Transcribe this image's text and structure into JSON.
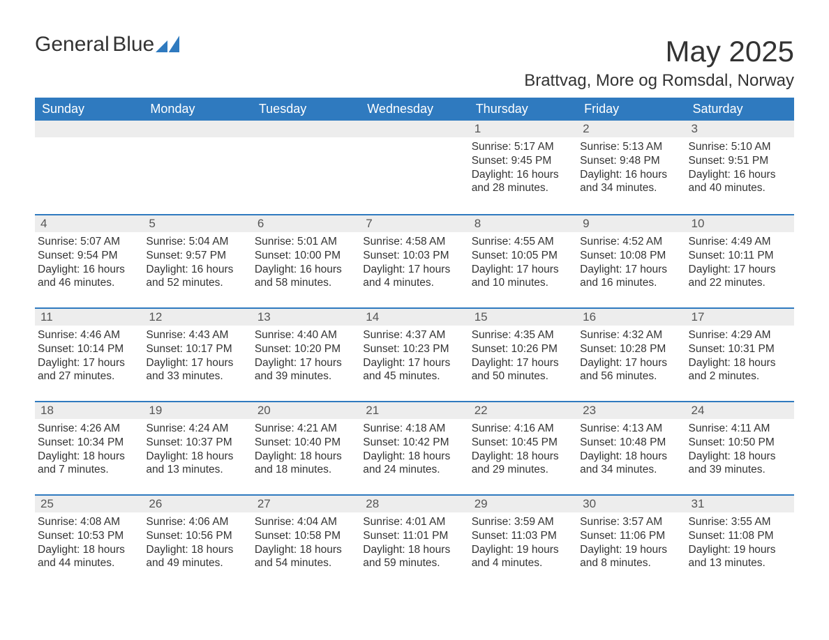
{
  "logo": {
    "text1": "General",
    "text2": "Blue",
    "accent_color": "#2f7abf"
  },
  "title": "May 2025",
  "location": "Brattvag, More og Romsdal, Norway",
  "theme": {
    "header_bg": "#2f7abf",
    "header_text": "#ffffff",
    "dayhead_bg": "#ededed",
    "dayhead_border": "#2f7abf",
    "body_text": "#333333",
    "page_bg": "#ffffff"
  },
  "columns": [
    "Sunday",
    "Monday",
    "Tuesday",
    "Wednesday",
    "Thursday",
    "Friday",
    "Saturday"
  ],
  "weeks": [
    [
      null,
      null,
      null,
      null,
      {
        "n": "1",
        "sr": "5:17 AM",
        "ss": "9:45 PM",
        "dl": "16 hours and 28 minutes."
      },
      {
        "n": "2",
        "sr": "5:13 AM",
        "ss": "9:48 PM",
        "dl": "16 hours and 34 minutes."
      },
      {
        "n": "3",
        "sr": "5:10 AM",
        "ss": "9:51 PM",
        "dl": "16 hours and 40 minutes."
      }
    ],
    [
      {
        "n": "4",
        "sr": "5:07 AM",
        "ss": "9:54 PM",
        "dl": "16 hours and 46 minutes."
      },
      {
        "n": "5",
        "sr": "5:04 AM",
        "ss": "9:57 PM",
        "dl": "16 hours and 52 minutes."
      },
      {
        "n": "6",
        "sr": "5:01 AM",
        "ss": "10:00 PM",
        "dl": "16 hours and 58 minutes."
      },
      {
        "n": "7",
        "sr": "4:58 AM",
        "ss": "10:03 PM",
        "dl": "17 hours and 4 minutes."
      },
      {
        "n": "8",
        "sr": "4:55 AM",
        "ss": "10:05 PM",
        "dl": "17 hours and 10 minutes."
      },
      {
        "n": "9",
        "sr": "4:52 AM",
        "ss": "10:08 PM",
        "dl": "17 hours and 16 minutes."
      },
      {
        "n": "10",
        "sr": "4:49 AM",
        "ss": "10:11 PM",
        "dl": "17 hours and 22 minutes."
      }
    ],
    [
      {
        "n": "11",
        "sr": "4:46 AM",
        "ss": "10:14 PM",
        "dl": "17 hours and 27 minutes."
      },
      {
        "n": "12",
        "sr": "4:43 AM",
        "ss": "10:17 PM",
        "dl": "17 hours and 33 minutes."
      },
      {
        "n": "13",
        "sr": "4:40 AM",
        "ss": "10:20 PM",
        "dl": "17 hours and 39 minutes."
      },
      {
        "n": "14",
        "sr": "4:37 AM",
        "ss": "10:23 PM",
        "dl": "17 hours and 45 minutes."
      },
      {
        "n": "15",
        "sr": "4:35 AM",
        "ss": "10:26 PM",
        "dl": "17 hours and 50 minutes."
      },
      {
        "n": "16",
        "sr": "4:32 AM",
        "ss": "10:28 PM",
        "dl": "17 hours and 56 minutes."
      },
      {
        "n": "17",
        "sr": "4:29 AM",
        "ss": "10:31 PM",
        "dl": "18 hours and 2 minutes."
      }
    ],
    [
      {
        "n": "18",
        "sr": "4:26 AM",
        "ss": "10:34 PM",
        "dl": "18 hours and 7 minutes."
      },
      {
        "n": "19",
        "sr": "4:24 AM",
        "ss": "10:37 PM",
        "dl": "18 hours and 13 minutes."
      },
      {
        "n": "20",
        "sr": "4:21 AM",
        "ss": "10:40 PM",
        "dl": "18 hours and 18 minutes."
      },
      {
        "n": "21",
        "sr": "4:18 AM",
        "ss": "10:42 PM",
        "dl": "18 hours and 24 minutes."
      },
      {
        "n": "22",
        "sr": "4:16 AM",
        "ss": "10:45 PM",
        "dl": "18 hours and 29 minutes."
      },
      {
        "n": "23",
        "sr": "4:13 AM",
        "ss": "10:48 PM",
        "dl": "18 hours and 34 minutes."
      },
      {
        "n": "24",
        "sr": "4:11 AM",
        "ss": "10:50 PM",
        "dl": "18 hours and 39 minutes."
      }
    ],
    [
      {
        "n": "25",
        "sr": "4:08 AM",
        "ss": "10:53 PM",
        "dl": "18 hours and 44 minutes."
      },
      {
        "n": "26",
        "sr": "4:06 AM",
        "ss": "10:56 PM",
        "dl": "18 hours and 49 minutes."
      },
      {
        "n": "27",
        "sr": "4:04 AM",
        "ss": "10:58 PM",
        "dl": "18 hours and 54 minutes."
      },
      {
        "n": "28",
        "sr": "4:01 AM",
        "ss": "11:01 PM",
        "dl": "18 hours and 59 minutes."
      },
      {
        "n": "29",
        "sr": "3:59 AM",
        "ss": "11:03 PM",
        "dl": "19 hours and 4 minutes."
      },
      {
        "n": "30",
        "sr": "3:57 AM",
        "ss": "11:06 PM",
        "dl": "19 hours and 8 minutes."
      },
      {
        "n": "31",
        "sr": "3:55 AM",
        "ss": "11:08 PM",
        "dl": "19 hours and 13 minutes."
      }
    ]
  ],
  "labels": {
    "sunrise": "Sunrise: ",
    "sunset": "Sunset: ",
    "daylight": "Daylight: "
  }
}
